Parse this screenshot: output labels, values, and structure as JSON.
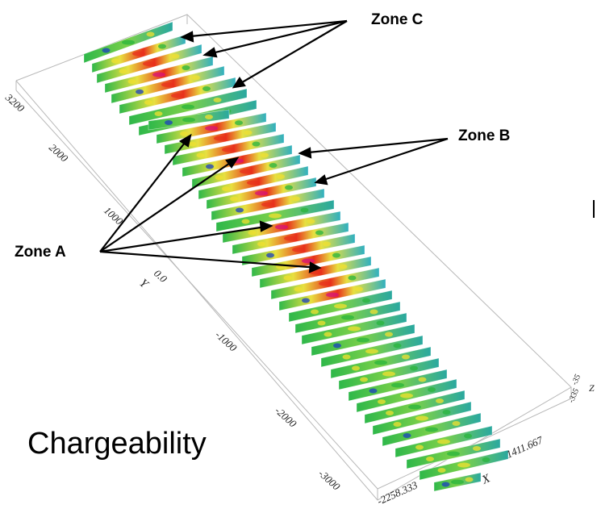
{
  "title": "Chargeability",
  "zones": [
    {
      "label": "Zone A"
    },
    {
      "label": "Zone B"
    },
    {
      "label": "Zone C"
    }
  ],
  "axes": {
    "y_label": "Y",
    "x_label": "X",
    "z_label": "Z",
    "y_ticks": [
      "3200",
      "2000",
      "1000",
      "0.0",
      "-1000",
      "-2000",
      "-3000"
    ],
    "x_ticks": [
      "-2258.333",
      "1411.667"
    ],
    "z_ticks": [
      "-35",
      "-335"
    ]
  },
  "colors": {
    "low": "#1a3fc0",
    "background": "#28b43c",
    "mid": "#f0e030",
    "high": "#e8301c",
    "peak": "#d8107a"
  }
}
